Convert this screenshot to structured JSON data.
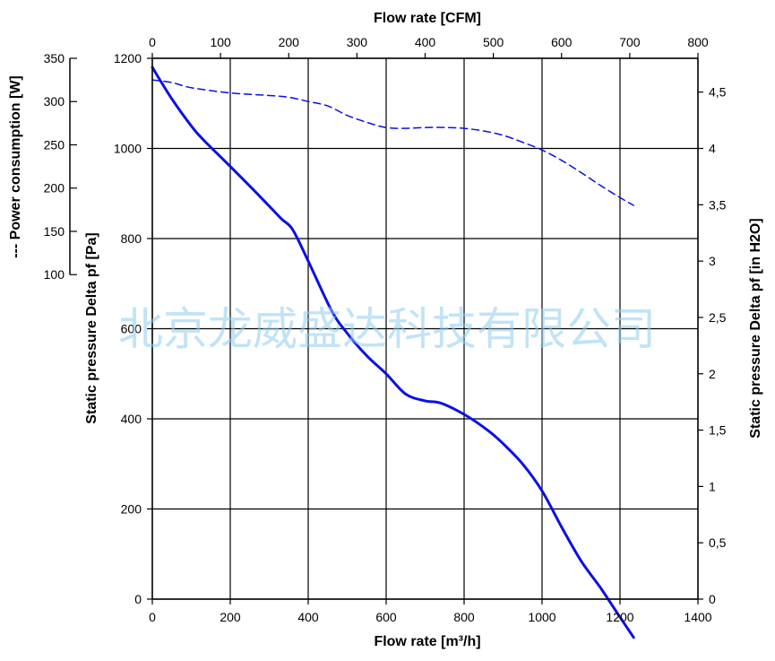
{
  "chart_data": {
    "type": "line",
    "title": "",
    "xlabel": "Flow rate [m³/h]",
    "x2label": "Flow rate [CFM]",
    "ylabel": "Static pressure Delta pf [Pa]",
    "y2label": "Static pressure Delta pf [in H2O]",
    "y3label": "--- Power consumption [W]",
    "xlim": [
      0,
      1400
    ],
    "ylim": [
      0,
      1200
    ],
    "x2lim": [
      0,
      800
    ],
    "y2lim": [
      0,
      4.8
    ],
    "y3lim": [
      100,
      350
    ],
    "x_ticks": [
      "0",
      "200",
      "400",
      "600",
      "800",
      "1000",
      "1200",
      "1400"
    ],
    "y_ticks": [
      "0",
      "200",
      "400",
      "600",
      "800",
      "1000",
      "1200"
    ],
    "x2_ticks": [
      "0",
      "100",
      "200",
      "300",
      "400",
      "500",
      "600",
      "700",
      "800"
    ],
    "y2_ticks": [
      "0",
      "0,5",
      "1",
      "1,5",
      "2",
      "2,5",
      "3",
      "3,5",
      "4",
      "4,5"
    ],
    "y3_ticks": [
      "100",
      "150",
      "200",
      "250",
      "300",
      "350"
    ],
    "grid": true,
    "colors": {
      "pressure": "#0a10e6",
      "power": "#0a10e6",
      "grid": "#000000"
    },
    "series": [
      {
        "style": "solid",
        "axis": "pressure",
        "x": [
          0,
          50,
          100,
          130,
          200,
          280,
          330,
          360,
          400,
          460,
          500,
          550,
          600,
          650,
          700,
          740,
          800,
          860,
          900,
          950,
          1000,
          1050,
          1100,
          1150,
          1200,
          1235
        ],
        "y": [
          1180,
          1110,
          1050,
          1020,
          960,
          890,
          845,
          820,
          750,
          640,
          590,
          540,
          500,
          455,
          440,
          435,
          410,
          375,
          345,
          300,
          240,
          160,
          85,
          25,
          -40,
          -85
        ]
      },
      {
        "style": "dashed",
        "axis": "power",
        "x": [
          0,
          50,
          100,
          200,
          300,
          350,
          400,
          450,
          500,
          550,
          600,
          650,
          700,
          750,
          800,
          850,
          900,
          950,
          1000,
          1050,
          1100,
          1150,
          1200,
          1235
        ],
        "y": [
          325,
          322,
          316,
          310,
          307,
          305,
          300,
          295,
          284,
          276,
          270,
          269,
          270,
          270,
          269,
          266,
          261,
          253,
          244,
          232,
          218,
          203,
          189,
          180
        ]
      }
    ]
  },
  "watermark": "北京龙威盛达科技有限公司"
}
